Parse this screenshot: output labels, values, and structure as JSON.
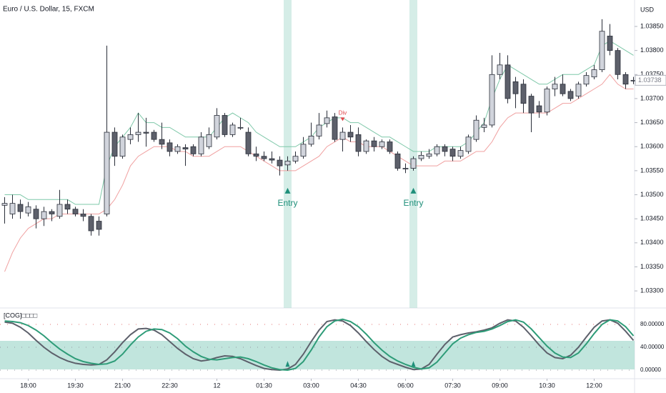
{
  "chart_data": {
    "type": "candlestick",
    "title": "Euro / U.S. Dollar, 15, FXCM",
    "currency": "USD",
    "last_price": {
      "value": 1.03738,
      "label": "1.03738"
    },
    "ylim": [
      1.03266,
      1.03905
    ],
    "yticks": [
      {
        "value": 1.033,
        "label": "1.03300"
      },
      {
        "value": 1.0335,
        "label": "1.03350"
      },
      {
        "value": 1.034,
        "label": "1.03400"
      },
      {
        "value": 1.0345,
        "label": "1.03450"
      },
      {
        "value": 1.035,
        "label": "1.03500"
      },
      {
        "value": 1.0355,
        "label": "1.03550"
      },
      {
        "value": 1.036,
        "label": "1.03600"
      },
      {
        "value": 1.0365,
        "label": "1.03650"
      },
      {
        "value": 1.037,
        "label": "1.03700"
      },
      {
        "value": 1.0375,
        "label": "1.03750"
      },
      {
        "value": 1.038,
        "label": "1.03800"
      },
      {
        "value": 1.0385,
        "label": "1.03850"
      }
    ],
    "xticks": [
      {
        "value": 3,
        "label": "18:00"
      },
      {
        "value": 9,
        "label": "19:30"
      },
      {
        "value": 15,
        "label": "21:00"
      },
      {
        "value": 21,
        "label": "22:30"
      },
      {
        "value": 27,
        "label": "12"
      },
      {
        "value": 33,
        "label": "01:30"
      },
      {
        "value": 39,
        "label": "03:00"
      },
      {
        "value": 45,
        "label": "04:30"
      },
      {
        "value": 51,
        "label": "06:00"
      },
      {
        "value": 57,
        "label": "07:30"
      },
      {
        "value": 63,
        "label": "09:00"
      },
      {
        "value": 69,
        "label": "10:30"
      },
      {
        "value": 75,
        "label": "12:00"
      }
    ],
    "up_color": "#d1d4dc",
    "down_color": "#5d606b",
    "open": [
      1.03478,
      1.0346,
      1.0348,
      1.03462,
      1.0347,
      1.0345,
      1.03465,
      1.03455,
      1.0348,
      1.0347,
      1.0346,
      1.03455,
      1.03445,
      1.0346,
      1.0363,
      1.0358,
      1.03615,
      1.03625,
      1.0363,
      1.0363,
      1.03615,
      1.03608,
      1.0359,
      1.03598,
      1.036,
      1.03585,
      1.036,
      1.0362,
      1.03665,
      1.03625,
      1.0364,
      1.0363,
      1.03585,
      1.0358,
      1.03575,
      1.03572,
      1.03562,
      1.0357,
      1.0358,
      1.03605,
      1.03622,
      1.03648,
      1.03662,
      1.03615,
      1.0363,
      1.03625,
      1.0359,
      1.03612,
      1.036,
      1.0361,
      1.03585,
      1.03555,
      1.03555,
      1.03575,
      1.0358,
      1.03585,
      1.036,
      1.03595,
      1.0358,
      1.0359,
      1.03615,
      1.0364,
      1.03645,
      1.0375,
      1.0377,
      1.03735,
      1.0373,
      1.03705,
      1.03685,
      1.03672,
      1.0372,
      1.0373,
      1.03715,
      1.03705,
      1.0373,
      1.03745,
      1.0376,
      1.0383,
      1.038,
      1.0375,
      1.03738
    ],
    "high": [
      1.03495,
      1.035,
      1.0349,
      1.03485,
      1.03478,
      1.03475,
      1.0347,
      1.0351,
      1.0349,
      1.03475,
      1.0347,
      1.0346,
      1.03455,
      1.0381,
      1.0364,
      1.03625,
      1.0364,
      1.0367,
      1.0366,
      1.03635,
      1.0365,
      1.03615,
      1.03605,
      1.03605,
      1.03605,
      1.0363,
      1.0364,
      1.0368,
      1.0367,
      1.0365,
      1.0366,
      1.0364,
      1.036,
      1.0359,
      1.0359,
      1.0358,
      1.0358,
      1.0359,
      1.0362,
      1.0365,
      1.0367,
      1.03675,
      1.0367,
      1.0364,
      1.03645,
      1.0364,
      1.03615,
      1.0362,
      1.03615,
      1.03615,
      1.0359,
      1.03565,
      1.0358,
      1.0359,
      1.03595,
      1.03605,
      1.03605,
      1.036,
      1.036,
      1.03625,
      1.03665,
      1.0366,
      1.0379,
      1.03795,
      1.0379,
      1.03745,
      1.0374,
      1.0371,
      1.03695,
      1.03725,
      1.03745,
      1.0375,
      1.0372,
      1.03735,
      1.03755,
      1.0377,
      1.03865,
      1.03855,
      1.03805,
      1.03755,
      1.03745
    ],
    "low": [
      1.0344,
      1.0345,
      1.0345,
      1.03455,
      1.0343,
      1.03435,
      1.03445,
      1.0345,
      1.0346,
      1.03455,
      1.03445,
      1.03415,
      1.03415,
      1.03455,
      1.0356,
      1.03575,
      1.03605,
      1.0361,
      1.036,
      1.0361,
      1.03595,
      1.0358,
      1.03585,
      1.0356,
      1.0358,
      1.0358,
      1.03595,
      1.03615,
      1.0362,
      1.0362,
      1.03635,
      1.0358,
      1.0357,
      1.0357,
      1.03565,
      1.0354,
      1.0355,
      1.03565,
      1.03575,
      1.036,
      1.03615,
      1.0364,
      1.0361,
      1.0359,
      1.0361,
      1.0358,
      1.03585,
      1.0359,
      1.03595,
      1.03585,
      1.0355,
      1.03545,
      1.0355,
      1.0357,
      1.03575,
      1.0358,
      1.0358,
      1.0357,
      1.03575,
      1.03585,
      1.0361,
      1.0363,
      1.0364,
      1.0374,
      1.0369,
      1.0368,
      1.0367,
      1.0363,
      1.0366,
      1.03665,
      1.03705,
      1.03705,
      1.03695,
      1.037,
      1.03725,
      1.0374,
      1.03755,
      1.0379,
      1.0374,
      1.0372,
      1.0373
    ],
    "close": [
      1.03482,
      1.03482,
      1.03465,
      1.03475,
      1.0345,
      1.03465,
      1.0346,
      1.0348,
      1.0347,
      1.0346,
      1.03455,
      1.03425,
      1.03428,
      1.0363,
      1.0358,
      1.0362,
      1.03625,
      1.0363,
      1.03628,
      1.03615,
      1.03605,
      1.0359,
      1.036,
      1.03595,
      1.03585,
      1.0362,
      1.03625,
      1.03665,
      1.03625,
      1.03645,
      1.0364,
      1.03585,
      1.0358,
      1.03575,
      1.03572,
      1.0356,
      1.0357,
      1.0358,
      1.03605,
      1.03622,
      1.03645,
      1.0366,
      1.03615,
      1.0363,
      1.0362,
      1.0359,
      1.03612,
      1.036,
      1.0361,
      1.0359,
      1.03555,
      1.03555,
      1.03575,
      1.03582,
      1.03585,
      1.036,
      1.0359,
      1.0358,
      1.03592,
      1.0362,
      1.03655,
      1.03645,
      1.0375,
      1.0377,
      1.037,
      1.0371,
      1.0369,
      1.0367,
      1.03672,
      1.0372,
      1.0373,
      1.0371,
      1.037,
      1.0373,
      1.03748,
      1.0376,
      1.0384,
      1.038,
      1.0375,
      1.0373,
      1.03738
    ],
    "upper": {
      "color": "#7fc8a9",
      "values": [
        1.035,
        1.035,
        1.035,
        1.0349,
        1.0349,
        1.0349,
        1.0349,
        1.0349,
        1.0349,
        1.0348,
        1.0348,
        1.0348,
        1.0348,
        1.0356,
        1.036,
        1.0362,
        1.0364,
        1.0367,
        1.0365,
        1.0365,
        1.0364,
        1.0364,
        1.0363,
        1.0362,
        1.0362,
        1.0362,
        1.0362,
        1.0364,
        1.0366,
        1.0367,
        1.0366,
        1.0365,
        1.0363,
        1.0362,
        1.0361,
        1.036,
        1.036,
        1.036,
        1.0361,
        1.0362,
        1.0364,
        1.0365,
        1.0366,
        1.0366,
        1.0365,
        1.0365,
        1.0364,
        1.0363,
        1.0362,
        1.0362,
        1.0361,
        1.036,
        1.0359,
        1.0359,
        1.0359,
        1.036,
        1.036,
        1.036,
        1.036,
        1.0361,
        1.0363,
        1.0365,
        1.037,
        1.0374,
        1.0377,
        1.0376,
        1.0375,
        1.0374,
        1.0373,
        1.0373,
        1.0374,
        1.0375,
        1.0375,
        1.0375,
        1.0376,
        1.0377,
        1.0381,
        1.0382,
        1.0381,
        1.038,
        1.0379
      ]
    },
    "lower": {
      "color": "#f0a0a0",
      "values": [
        1.0334,
        1.0338,
        1.0341,
        1.0343,
        1.0344,
        1.0345,
        1.0345,
        1.0346,
        1.0346,
        1.0346,
        1.0346,
        1.0346,
        1.0346,
        1.0347,
        1.0349,
        1.0352,
        1.0356,
        1.0358,
        1.0359,
        1.036,
        1.036,
        1.036,
        1.0359,
        1.0359,
        1.0358,
        1.0358,
        1.0358,
        1.0359,
        1.036,
        1.036,
        1.036,
        1.0359,
        1.0358,
        1.0357,
        1.0356,
        1.0355,
        1.0355,
        1.0355,
        1.0356,
        1.0357,
        1.0358,
        1.036,
        1.0361,
        1.0362,
        1.0361,
        1.0361,
        1.036,
        1.036,
        1.036,
        1.0359,
        1.0358,
        1.0357,
        1.0356,
        1.0356,
        1.0356,
        1.0356,
        1.0357,
        1.0357,
        1.0357,
        1.0358,
        1.0359,
        1.0359,
        1.0361,
        1.0364,
        1.0366,
        1.0367,
        1.0367,
        1.0367,
        1.0367,
        1.0367,
        1.0368,
        1.0369,
        1.0369,
        1.037,
        1.0371,
        1.0372,
        1.0373,
        1.0375,
        1.0373,
        1.0372,
        1.0372
      ]
    },
    "signals": [
      {
        "index": 36,
        "label": "Entry",
        "color": "#1f8f7a"
      },
      {
        "index": 52,
        "label": "Entry",
        "color": "#1f8f7a"
      }
    ],
    "divergence": {
      "index": 43,
      "label": "Div",
      "color": "#e0474c"
    },
    "oscillator": {
      "title": "[COG]□□□□",
      "ylim": [
        -15,
        107.5
      ],
      "yticks": [
        {
          "value": 80,
          "label": "80.00000"
        },
        {
          "value": 40,
          "label": "40.00000"
        },
        {
          "value": 0,
          "label": "0.00000"
        }
      ],
      "series": [
        {
          "color": "#5d606b",
          "values": [
            84,
            82,
            75,
            65,
            52,
            40,
            30,
            22,
            16,
            12,
            10,
            9,
            10,
            18,
            32,
            48,
            62,
            72,
            73,
            70,
            62,
            50,
            38,
            28,
            20,
            16,
            18,
            22,
            25,
            24,
            20,
            14,
            8,
            3,
            1,
            0,
            2,
            10,
            28,
            50,
            70,
            85,
            88,
            86,
            78,
            65,
            50,
            36,
            24,
            15,
            10,
            5,
            1,
            2,
            10,
            28,
            45,
            58,
            62,
            65,
            67,
            70,
            74,
            82,
            88,
            86,
            75,
            60,
            44,
            30,
            22,
            20,
            26,
            40,
            58,
            75,
            86,
            88,
            82,
            68,
            52
          ]
        },
        {
          "color": "#2e9c78",
          "values": [
            86,
            85,
            83,
            78,
            70,
            60,
            48,
            37,
            28,
            20,
            15,
            12,
            10,
            11,
            16,
            28,
            44,
            58,
            68,
            72,
            71,
            65,
            55,
            42,
            32,
            24,
            19,
            18,
            20,
            22,
            23,
            20,
            15,
            9,
            4,
            1,
            0,
            3,
            15,
            35,
            58,
            76,
            86,
            89,
            85,
            76,
            63,
            48,
            35,
            24,
            16,
            10,
            5,
            2,
            4,
            14,
            30,
            46,
            56,
            62,
            66,
            68,
            72,
            78,
            85,
            88,
            84,
            72,
            57,
            42,
            30,
            23,
            22,
            30,
            46,
            64,
            80,
            88,
            86,
            76,
            60
          ]
        }
      ]
    }
  }
}
